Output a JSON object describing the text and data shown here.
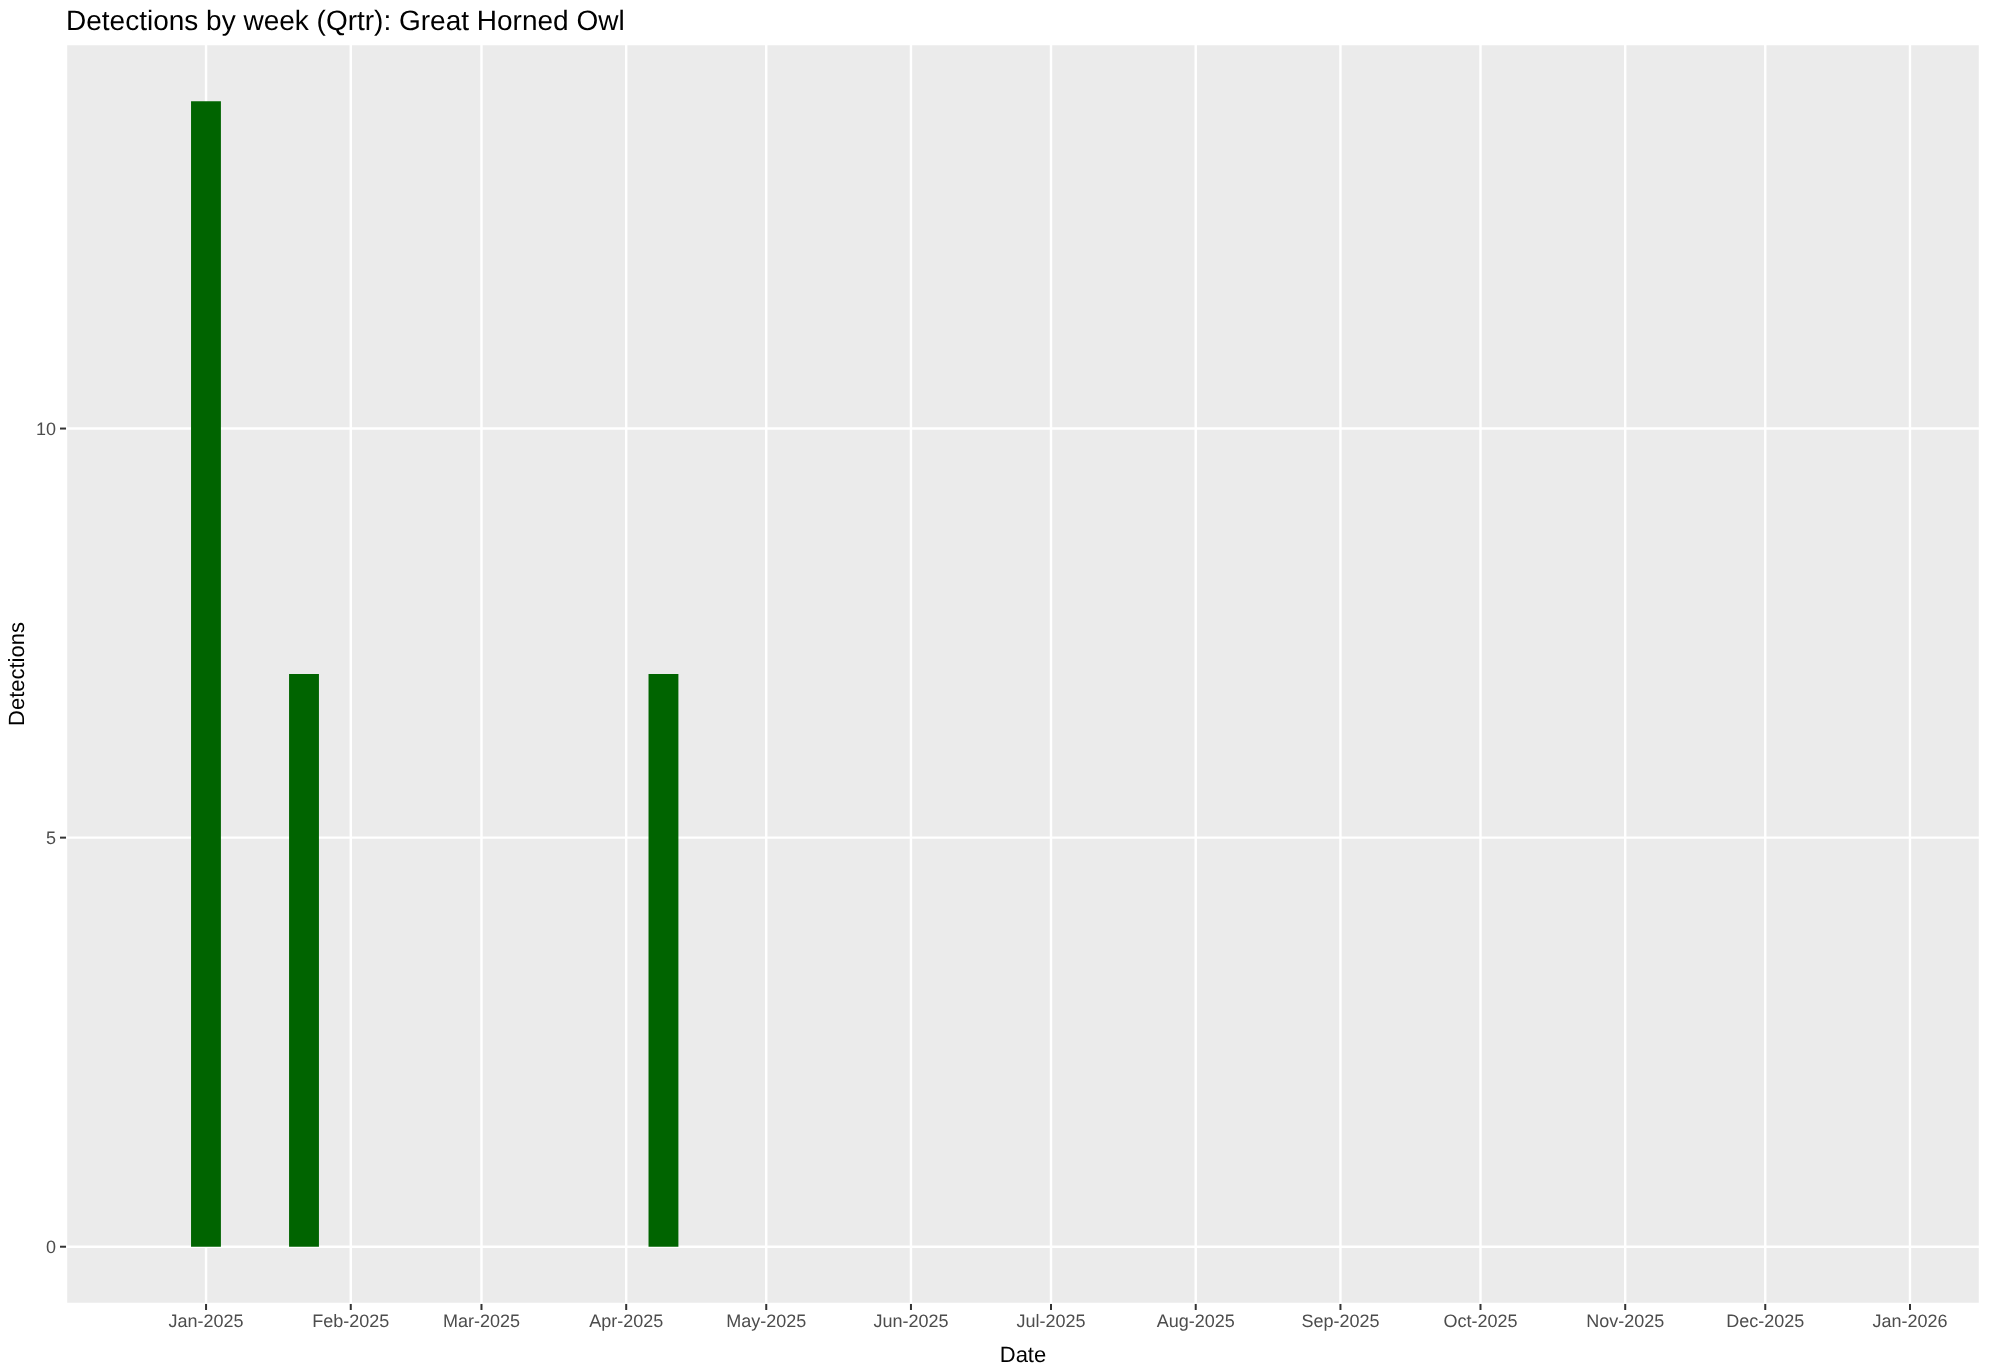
{
  "chart_data": {
    "type": "bar",
    "title": "Detections by week (Qrtr): Great Horned Owl",
    "xlabel": "Date",
    "ylabel": "Detections",
    "x": [
      "2025-01-01",
      "2025-01-22",
      "2025-04-09"
    ],
    "values": [
      14,
      7,
      7
    ],
    "color": "#006400",
    "xlim": [
      "2024-12-02",
      "2026-01-16"
    ],
    "xticks": [
      {
        "value": "2025-01-01",
        "label": "Jan-2025"
      },
      {
        "value": "2025-02-01",
        "label": "Feb-2025"
      },
      {
        "value": "2025-03-01",
        "label": "Mar-2025"
      },
      {
        "value": "2025-04-01",
        "label": "Apr-2025"
      },
      {
        "value": "2025-05-01",
        "label": "May-2025"
      },
      {
        "value": "2025-06-01",
        "label": "Jun-2025"
      },
      {
        "value": "2025-07-01",
        "label": "Jul-2025"
      },
      {
        "value": "2025-08-01",
        "label": "Aug-2025"
      },
      {
        "value": "2025-09-01",
        "label": "Sep-2025"
      },
      {
        "value": "2025-10-01",
        "label": "Oct-2025"
      },
      {
        "value": "2025-11-01",
        "label": "Nov-2025"
      },
      {
        "value": "2025-12-01",
        "label": "Dec-2025"
      },
      {
        "value": "2026-01-01",
        "label": "Jan-2026"
      }
    ],
    "ylim": [
      -0.7,
      14.7
    ],
    "yticks": [
      0,
      5,
      10
    ],
    "grid": true
  }
}
